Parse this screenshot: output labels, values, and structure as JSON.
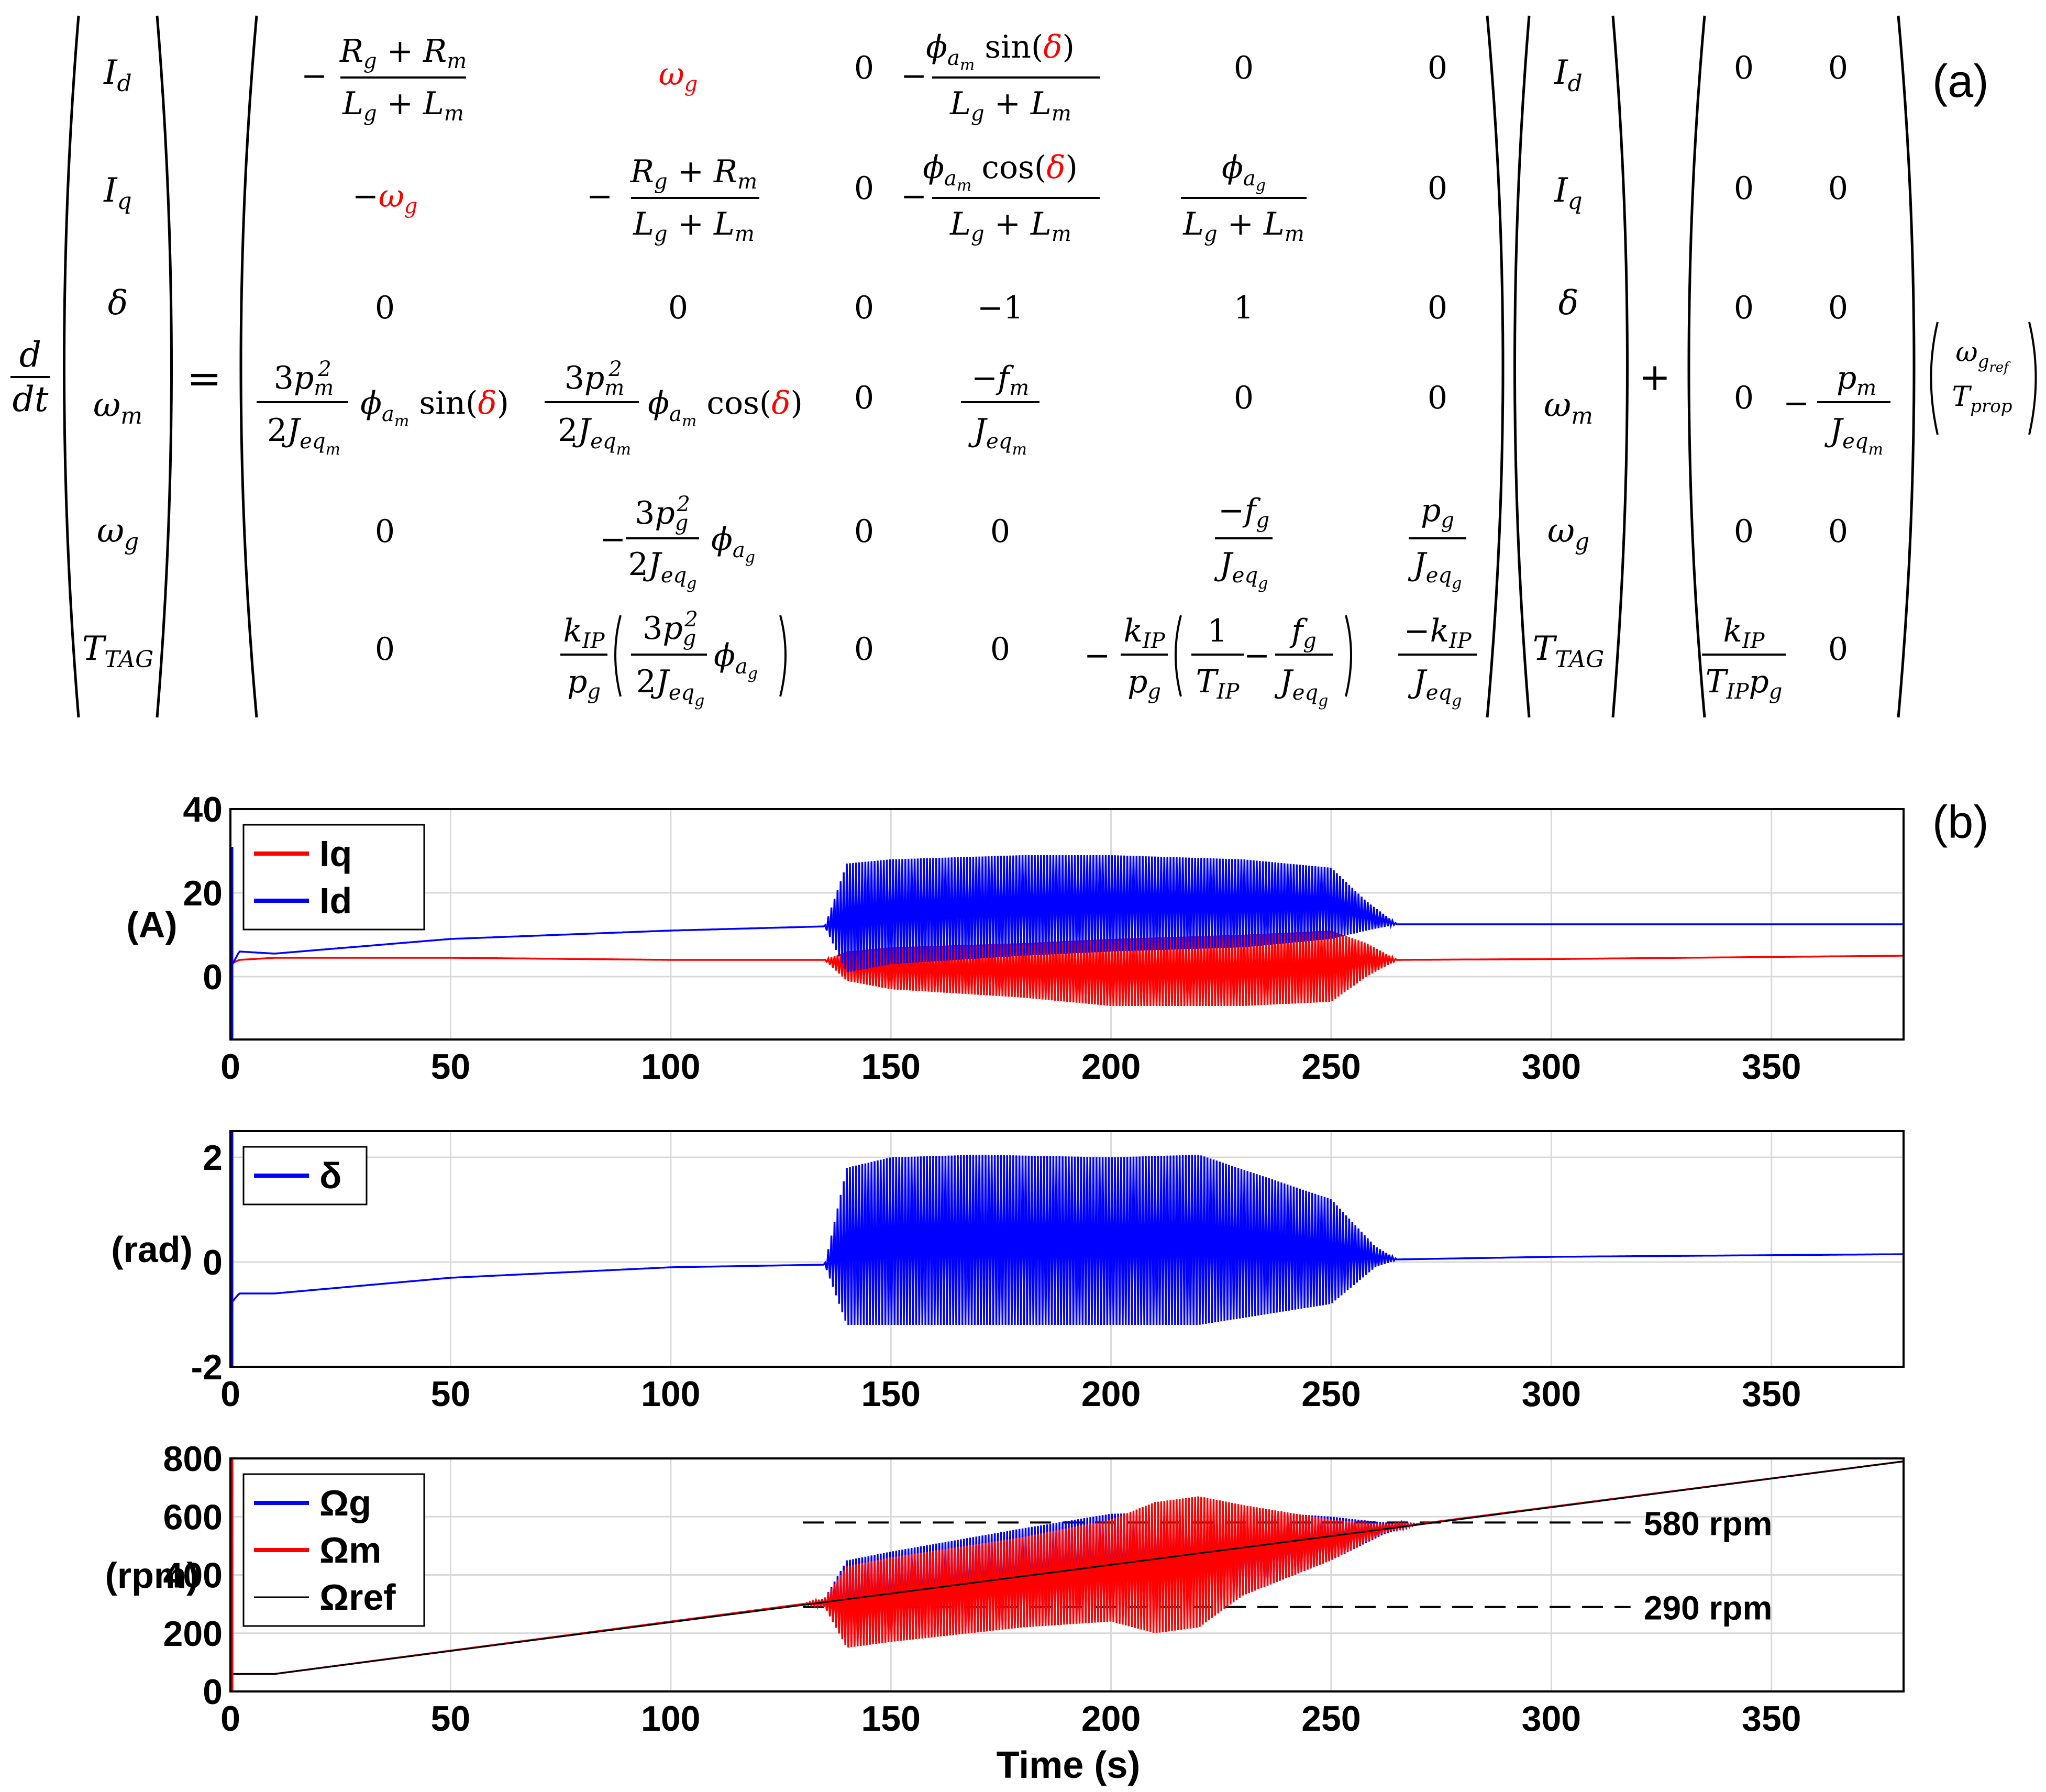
{
  "panel_labels": {
    "a": "(a)",
    "b": "(b)"
  },
  "colors": {
    "red": "#ff0000",
    "blue": "#0000ff",
    "dark_red": "#8b0000",
    "black": "#000000",
    "grid": "#d9d9d9"
  },
  "equation": {
    "lhs_derivative_num": "d",
    "lhs_derivative_den": "dt",
    "equals": "=",
    "plus": "+",
    "state_vector": [
      "I_d",
      "I_q",
      "δ",
      "ω_m",
      "ω_g",
      "T_TAG"
    ],
    "input_vector": [
      "ω_g_ref",
      "T_prop"
    ],
    "system_matrix": [
      [
        "−(R_g + R_m)/(L_g + L_m)",
        "ω_g",
        "0",
        "−φ_a_m sin(δ)/(L_g + L_m)",
        "0",
        "0"
      ],
      [
        "−ω_g",
        "−(R_g + R_m)/(L_g + L_m)",
        "0",
        "−φ_a_m cos(δ)/(L_g + L_m)",
        "φ_a_g/(L_g + L_m)",
        "0"
      ],
      [
        "0",
        "0",
        "0",
        "−1",
        "1",
        "0"
      ],
      [
        "3p_m²/(2J_eq_m) φ_a_m sin(δ)",
        "3p_m²/(2J_eq_m) φ_a_m cos(δ)",
        "0",
        "−f_m/J_eq_m",
        "0",
        "0"
      ],
      [
        "0",
        "−3p_g²/(2J_eq_g) φ_a_g",
        "0",
        "0",
        "−f_g/J_eq_g",
        "p_g/J_eq_g"
      ],
      [
        "0",
        "k_IP/p_g (3p_g²/(2J_eq_g) φ_a_g)",
        "0",
        "0",
        "−k_IP/p_g (1/T_IP − f_g/J_eq_g)",
        "−k_IP/J_eq_g"
      ]
    ],
    "input_matrix": [
      [
        "0",
        "0"
      ],
      [
        "0",
        "0"
      ],
      [
        "0",
        "0"
      ],
      [
        "0",
        "−p_m/J_eq_m"
      ],
      [
        "0",
        "0"
      ],
      [
        "k_IP/(T_IP p_g)",
        "0"
      ]
    ]
  },
  "chart_data": [
    {
      "type": "line",
      "ylabel": "(A)",
      "xlabel": "",
      "xlim": [
        0,
        380
      ],
      "ylim": [
        -15,
        40
      ],
      "xticks": [
        "0",
        "50",
        "100",
        "150",
        "200",
        "250",
        "300",
        "350"
      ],
      "yticks": [
        "0",
        "20",
        "40"
      ],
      "grid": true,
      "legend_position": "top-left",
      "series": [
        {
          "name": "Iq",
          "color": "#ff0000",
          "x": [
            0,
            2,
            10,
            50,
            100,
            135,
            140,
            150,
            180,
            200,
            230,
            250,
            258,
            265,
            300,
            380
          ],
          "y": [
            3,
            4,
            4.5,
            4.5,
            4,
            4,
            3.5,
            3.5,
            3.5,
            3.5,
            3.5,
            3.5,
            4,
            4,
            4.2,
            5
          ],
          "envelope_upper": [
            3,
            4,
            4.5,
            4.5,
            4,
            4,
            6,
            7,
            8,
            9,
            10,
            11,
            8,
            4,
            4.2,
            5
          ],
          "envelope_lower": [
            3,
            4,
            4.5,
            4.5,
            4,
            4,
            -1,
            -3,
            -5,
            -7,
            -7,
            -6,
            0,
            4,
            4.2,
            5
          ]
        },
        {
          "name": "Id",
          "color": "#0000ff",
          "x": [
            0,
            2,
            10,
            50,
            100,
            135,
            140,
            150,
            180,
            200,
            230,
            250,
            258,
            265,
            300,
            380
          ],
          "y": [
            2,
            6,
            5.5,
            9,
            11,
            12,
            12,
            12,
            12,
            12,
            12,
            12,
            12.5,
            12.5,
            12.5,
            12.5
          ],
          "envelope_upper": [
            2,
            6,
            5.5,
            9,
            11,
            12,
            27,
            28,
            29,
            29,
            28,
            26,
            18,
            12.5,
            12.5,
            12.5
          ],
          "envelope_lower": [
            2,
            6,
            5.5,
            9,
            11,
            12,
            1,
            3,
            5,
            6,
            7,
            9,
            11,
            12.5,
            12.5,
            12.5
          ]
        }
      ]
    },
    {
      "type": "line",
      "ylabel": "(rad)",
      "xlabel": "",
      "xlim": [
        0,
        380
      ],
      "ylim": [
        -2,
        2.5
      ],
      "xticks": [
        "0",
        "50",
        "100",
        "150",
        "200",
        "250",
        "300",
        "350"
      ],
      "yticks": [
        "-2",
        "0",
        "2"
      ],
      "grid": true,
      "legend_position": "top-left",
      "series": [
        {
          "name": "δ",
          "color": "#0000ff",
          "x": [
            0,
            2,
            10,
            50,
            100,
            135,
            140,
            150,
            170,
            200,
            220,
            250,
            260,
            265,
            300,
            380
          ],
          "y": [
            -0.8,
            -0.6,
            -0.6,
            -0.3,
            -0.1,
            -0.05,
            0.35,
            0.4,
            0.45,
            0.4,
            0.4,
            0.2,
            0.1,
            0.05,
            0.1,
            0.15
          ],
          "envelope_upper": [
            -0.8,
            -0.6,
            -0.6,
            -0.3,
            -0.1,
            -0.05,
            1.8,
            2.0,
            2.05,
            2.0,
            2.05,
            1.2,
            0.3,
            0.05,
            0.1,
            0.15
          ],
          "envelope_lower": [
            -0.8,
            -0.6,
            -0.6,
            -0.3,
            -0.1,
            -0.05,
            -1.2,
            -1.2,
            -1.2,
            -1.2,
            -1.2,
            -0.8,
            -0.1,
            0.05,
            0.1,
            0.15
          ]
        }
      ]
    },
    {
      "type": "line",
      "ylabel": "(rpm)",
      "xlabel": "Time (s)",
      "xlim": [
        0,
        380
      ],
      "ylim": [
        0,
        800
      ],
      "xticks": [
        "0",
        "50",
        "100",
        "150",
        "200",
        "250",
        "300",
        "350"
      ],
      "yticks": [
        "0",
        "200",
        "400",
        "600",
        "800"
      ],
      "grid": true,
      "legend_position": "top-left",
      "series": [
        {
          "name": "Ωg",
          "color": "#0000ff",
          "x": [
            0,
            2,
            10,
            130,
            135,
            140,
            150,
            180,
            200,
            230,
            250,
            262,
            270,
            380
          ],
          "y": [
            60,
            60,
            60,
            300,
            305,
            310,
            330,
            390,
            420,
            470,
            520,
            560,
            575,
            790
          ],
          "envelope_upper": [
            60,
            60,
            60,
            300,
            320,
            450,
            480,
            560,
            610,
            620,
            600,
            580,
            575,
            790
          ],
          "envelope_lower": [
            60,
            60,
            60,
            300,
            290,
            160,
            180,
            230,
            250,
            330,
            450,
            540,
            575,
            790
          ]
        },
        {
          "name": "Ωm",
          "color": "#ff0000",
          "x": [
            0,
            2,
            10,
            130,
            135,
            140,
            150,
            180,
            200,
            210,
            220,
            230,
            250,
            262,
            270,
            380
          ],
          "y": [
            60,
            60,
            60,
            300,
            305,
            310,
            330,
            390,
            420,
            440,
            455,
            470,
            520,
            560,
            575,
            790
          ],
          "envelope_upper": [
            60,
            60,
            60,
            300,
            320,
            430,
            460,
            530,
            590,
            650,
            670,
            640,
            590,
            575,
            575,
            790
          ],
          "envelope_lower": [
            60,
            60,
            60,
            300,
            290,
            150,
            170,
            220,
            240,
            200,
            220,
            330,
            450,
            545,
            575,
            790
          ]
        },
        {
          "name": "Ωref",
          "color": "#000000",
          "x": [
            0,
            10,
            380
          ],
          "y": [
            60,
            60,
            790
          ]
        }
      ],
      "annotations": [
        {
          "text": "580 rpm",
          "y": 580
        },
        {
          "text": "290 rpm",
          "y": 290
        }
      ]
    }
  ]
}
